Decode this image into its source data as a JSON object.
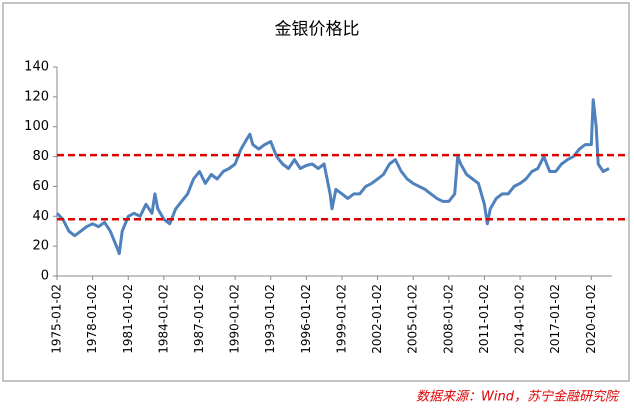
{
  "chart_data": {
    "type": "line",
    "title": "金银价格比",
    "x": [
      "1975-01-02",
      "1975-07-01",
      "1976-01-02",
      "1976-07-01",
      "1977-01-02",
      "1977-07-01",
      "1978-01-02",
      "1978-07-01",
      "1979-01-02",
      "1979-07-01",
      "1980-01-02",
      "1980-04-01",
      "1980-07-01",
      "1981-01-02",
      "1981-07-01",
      "1982-01-02",
      "1982-07-01",
      "1983-01-02",
      "1983-04-01",
      "1983-07-01",
      "1984-01-02",
      "1984-07-01",
      "1985-01-02",
      "1985-07-01",
      "1986-01-02",
      "1986-07-01",
      "1987-01-02",
      "1987-07-01",
      "1988-01-02",
      "1988-07-01",
      "1989-01-02",
      "1989-07-01",
      "1990-01-02",
      "1990-07-01",
      "1991-01-02",
      "1991-04-01",
      "1991-07-01",
      "1992-01-02",
      "1992-07-01",
      "1993-01-02",
      "1993-07-01",
      "1994-01-02",
      "1994-07-01",
      "1995-01-02",
      "1995-07-01",
      "1996-01-02",
      "1996-07-01",
      "1997-01-02",
      "1997-07-01",
      "1998-01-02",
      "1998-03-01",
      "1998-07-01",
      "1999-01-02",
      "1999-07-01",
      "2000-01-02",
      "2000-07-01",
      "2001-01-02",
      "2001-07-01",
      "2002-01-02",
      "2002-07-01",
      "2003-01-02",
      "2003-07-01",
      "2004-01-02",
      "2004-07-01",
      "2005-01-02",
      "2005-07-01",
      "2006-01-02",
      "2006-07-01",
      "2007-01-02",
      "2007-07-01",
      "2008-01-02",
      "2008-07-01",
      "2008-10-01",
      "2009-01-02",
      "2009-07-01",
      "2010-01-02",
      "2010-07-01",
      "2011-01-02",
      "2011-04-01",
      "2011-07-01",
      "2012-01-02",
      "2012-07-01",
      "2013-01-02",
      "2013-07-01",
      "2014-01-02",
      "2014-07-01",
      "2015-01-02",
      "2015-07-01",
      "2016-01-02",
      "2016-07-01",
      "2017-01-02",
      "2017-07-01",
      "2018-01-02",
      "2018-07-01",
      "2019-01-02",
      "2019-07-01",
      "2020-01-02",
      "2020-03-01",
      "2020-06-01",
      "2020-08-01",
      "2021-01-02",
      "2021-07-01"
    ],
    "series": [
      {
        "color": "#4f81bd",
        "values": [
          42,
          38,
          30,
          27,
          30,
          33,
          35,
          33,
          36,
          30,
          20,
          15,
          30,
          40,
          42,
          40,
          48,
          42,
          55,
          45,
          38,
          35,
          45,
          50,
          55,
          65,
          70,
          62,
          68,
          65,
          70,
          72,
          75,
          85,
          92,
          95,
          88,
          85,
          88,
          90,
          80,
          75,
          72,
          78,
          72,
          74,
          75,
          72,
          75,
          55,
          45,
          58,
          55,
          52,
          55,
          55,
          60,
          62,
          65,
          68,
          75,
          78,
          70,
          65,
          62,
          60,
          58,
          55,
          52,
          50,
          50,
          55,
          80,
          75,
          68,
          65,
          62,
          48,
          35,
          45,
          52,
          55,
          55,
          60,
          62,
          65,
          70,
          72,
          80,
          70,
          70,
          75,
          78,
          80,
          85,
          88,
          88,
          118,
          100,
          75,
          70,
          72
        ]
      }
    ],
    "xlim": [
      "1975-01-02",
      "2021-09-30"
    ],
    "xticks": [
      "1975-01-02",
      "1978-01-02",
      "1981-01-02",
      "1984-01-02",
      "1987-01-02",
      "1990-01-02",
      "1993-01-02",
      "1996-01-02",
      "1999-01-02",
      "2002-01-02",
      "2005-01-02",
      "2008-01-02",
      "2011-01-02",
      "2014-01-02",
      "2017-01-02",
      "2020-01-02"
    ],
    "ylim": [
      0,
      140
    ],
    "yticks": [
      0,
      20,
      40,
      60,
      80,
      100,
      120,
      140
    ],
    "grid": false,
    "reference_lines": [
      {
        "value": 81,
        "color": "#e00000"
      },
      {
        "value": 38,
        "color": "#e00000"
      }
    ],
    "source": "数据来源：Wind，苏宁金融研究院"
  }
}
